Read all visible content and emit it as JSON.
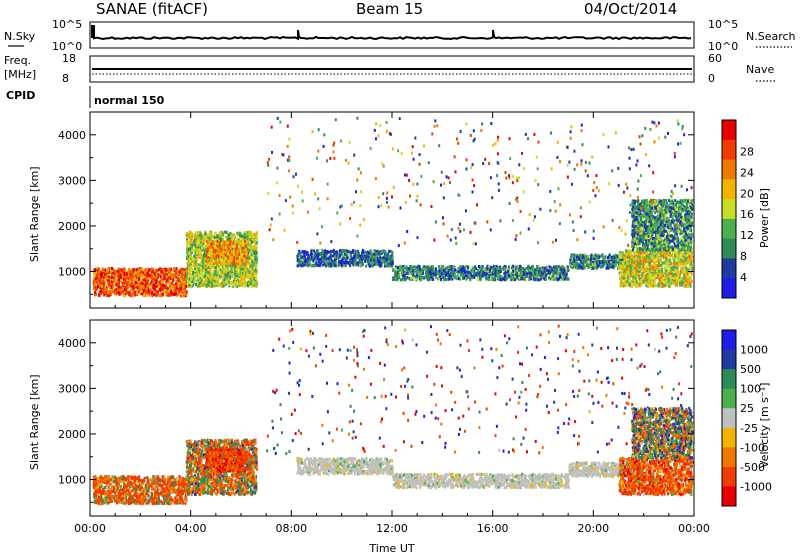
{
  "header": {
    "station": "SANAE (fitACF)",
    "beam": "Beam 15",
    "date": "04/Oct/2014"
  },
  "summary": {
    "nsky_label": "N.Sky",
    "nsky_ticks": [
      "10^5",
      "10^0"
    ],
    "nsearch_label": "N.Search",
    "nsearch_ticks": [
      "10^5",
      "10^0"
    ],
    "freq_label": "Freq.",
    "freq_unit": "[MHz]",
    "freq_ticks": [
      "18",
      "8"
    ],
    "nave_label": "Nave",
    "nave_ticks": [
      "60",
      "0"
    ],
    "cpid_label": "CPID",
    "cpid_value": "normal 150"
  },
  "colors": {
    "power": [
      "#1e1ee6",
      "#1e3ca0",
      "#2e8b57",
      "#4caf50",
      "#c8dc28",
      "#f0b400",
      "#f07800",
      "#f03c00",
      "#e60000"
    ],
    "velocity": [
      "#1e1ee6",
      "#1e3ca0",
      "#2e8b57",
      "#4caf50",
      "#c0c0c0",
      "#f0b400",
      "#f07800",
      "#f03c00",
      "#e60000"
    ]
  },
  "chart_data": [
    {
      "type": "heatmap",
      "name": "power",
      "xlabel": "",
      "ylabel": "Slant Range [km]",
      "xlim": [
        0,
        24
      ],
      "ylim": [
        200,
        4500
      ],
      "yticks": [
        1000,
        2000,
        3000,
        4000
      ],
      "colorbar": {
        "label": "Power [dB]",
        "ticks": [
          "4",
          "8",
          "12",
          "16",
          "20",
          "24",
          "28"
        ],
        "range": [
          0,
          30
        ]
      },
      "regions": [
        {
          "t0": 0.1,
          "t1": 3.8,
          "r0": 500,
          "r1": 1100,
          "value": 24
        },
        {
          "t0": 3.8,
          "t1": 6.6,
          "r0": 700,
          "r1": 1900,
          "value": 14
        },
        {
          "t0": 4.6,
          "t1": 6.2,
          "r0": 1200,
          "r1": 1700,
          "value": 20
        },
        {
          "t0": 8.2,
          "t1": 12.0,
          "r0": 1150,
          "r1": 1500,
          "value": 6
        },
        {
          "t0": 12.0,
          "t1": 19.0,
          "r0": 850,
          "r1": 1150,
          "value": 8
        },
        {
          "t0": 19.0,
          "t1": 21.5,
          "r0": 1100,
          "r1": 1400,
          "value": 8
        },
        {
          "t0": 21.0,
          "t1": 23.9,
          "r0": 700,
          "r1": 1500,
          "value": 16
        },
        {
          "t0": 21.5,
          "t1": 23.9,
          "r0": 1500,
          "r1": 2600,
          "value": 9
        }
      ]
    },
    {
      "type": "heatmap",
      "name": "velocity",
      "xlabel": "Time UT",
      "ylabel": "Slant Range [km]",
      "xticks": [
        "00:00",
        "04:00",
        "08:00",
        "12:00",
        "16:00",
        "20:00",
        "00:00"
      ],
      "xlim": [
        0,
        24
      ],
      "ylim": [
        200,
        4500
      ],
      "yticks": [
        1000,
        2000,
        3000,
        4000
      ],
      "colorbar": {
        "label": "Velocity [m s⁻¹]",
        "ticks": [
          "1000",
          "500",
          "100",
          "25",
          "-25",
          "-100",
          "-500",
          "-1000"
        ]
      },
      "regions": [
        {
          "t0": 0.1,
          "t1": 3.8,
          "r0": 500,
          "r1": 1100,
          "value": -300
        },
        {
          "t0": 3.8,
          "t1": 6.6,
          "r0": 700,
          "r1": 1900,
          "value": -100
        },
        {
          "t0": 4.6,
          "t1": 6.2,
          "r0": 1200,
          "r1": 1700,
          "value": -500
        },
        {
          "t0": 8.2,
          "t1": 12.0,
          "r0": 1150,
          "r1": 1500,
          "value": 0
        },
        {
          "t0": 12.0,
          "t1": 19.0,
          "r0": 850,
          "r1": 1150,
          "value": 0
        },
        {
          "t0": 19.0,
          "t1": 21.5,
          "r0": 1100,
          "r1": 1400,
          "value": 0
        },
        {
          "t0": 21.0,
          "t1": 23.9,
          "r0": 700,
          "r1": 1500,
          "value": -400
        },
        {
          "t0": 21.5,
          "t1": 23.9,
          "r0": 1500,
          "r1": 2600,
          "value": 50
        }
      ]
    }
  ]
}
